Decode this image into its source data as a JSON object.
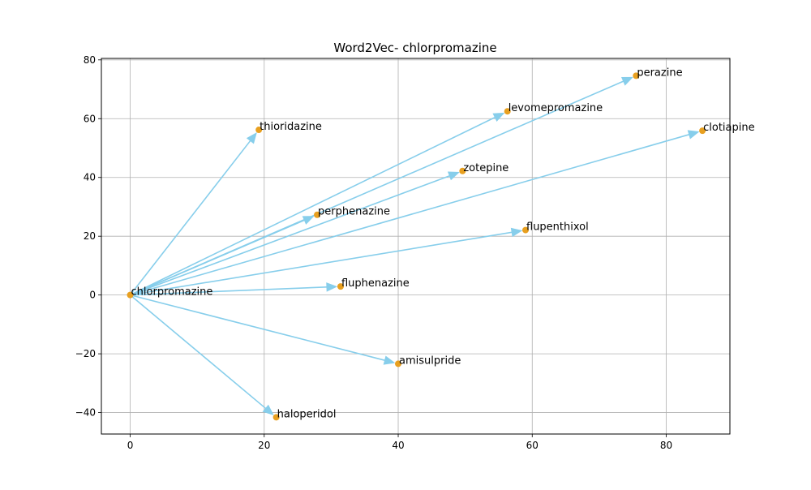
{
  "chart_data": {
    "type": "scatter",
    "title": "Word2Vec- chlorpromazine",
    "xlabel": "",
    "ylabel": "",
    "xlim": [
      -4.3,
      89.5
    ],
    "ylim": [
      -47.3,
      80.5
    ],
    "xticks": [
      0,
      20,
      40,
      60,
      80
    ],
    "yticks": [
      -40,
      -20,
      0,
      20,
      40,
      60,
      80
    ],
    "xtick_labels": [
      "0",
      "20",
      "40",
      "60",
      "80"
    ],
    "ytick_labels": [
      "−40",
      "−20",
      "0",
      "20",
      "40",
      "60",
      "80"
    ],
    "grid": true,
    "origin": {
      "label": "chlorpromazine",
      "x": 0,
      "y": 0
    },
    "points": [
      {
        "label": "chlorpromazine",
        "x": 0,
        "y": 0
      },
      {
        "label": "thioridazine",
        "x": 19.2,
        "y": 56.2
      },
      {
        "label": "perphenazine",
        "x": 27.9,
        "y": 27.3
      },
      {
        "label": "levomepromazine",
        "x": 56.3,
        "y": 62.5
      },
      {
        "label": "perazine",
        "x": 75.5,
        "y": 74.6
      },
      {
        "label": "clotiapine",
        "x": 85.4,
        "y": 55.9
      },
      {
        "label": "zotepine",
        "x": 49.6,
        "y": 42.2
      },
      {
        "label": "flupenthixol",
        "x": 59.0,
        "y": 22.1
      },
      {
        "label": "fluphenazine",
        "x": 31.4,
        "y": 2.9
      },
      {
        "label": "amisulpride",
        "x": 40.0,
        "y": -23.4
      },
      {
        "label": "haloperidol",
        "x": 21.8,
        "y": -41.6
      }
    ],
    "arrow_color": "#87ceeb",
    "point_color": "#e8a020"
  }
}
